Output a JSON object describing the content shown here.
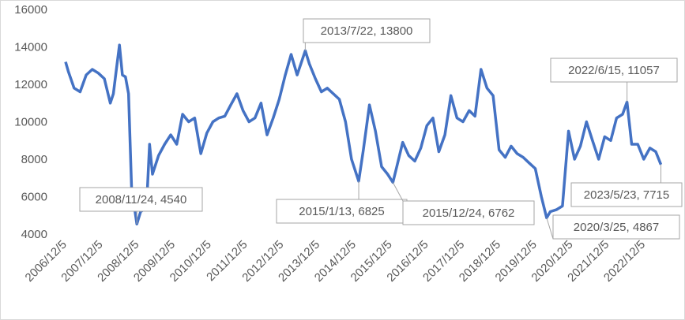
{
  "chart_data": {
    "type": "line",
    "color": "#4472c4",
    "x": [
      "2006/12/5",
      "2007/1",
      "2007/3",
      "2007/5",
      "2007/7",
      "2007/9",
      "2007/11",
      "2008/1",
      "2008/3",
      "2008/4",
      "2008/5",
      "2008/6",
      "2008/7",
      "2008/8",
      "2008/9",
      "2008/10",
      "2008/11/24",
      "2009/1",
      "2009/3",
      "2009/4",
      "2009/5",
      "2009/7",
      "2009/9",
      "2009/11",
      "2010/1",
      "2010/3",
      "2010/5",
      "2010/7",
      "2010/9",
      "2010/11",
      "2011/1",
      "2011/3",
      "2011/5",
      "2011/7",
      "2011/9",
      "2011/11",
      "2012/1",
      "2012/3",
      "2012/5",
      "2012/7",
      "2012/9",
      "2012/11",
      "2013/1",
      "2013/3",
      "2013/5",
      "2013/7/22",
      "2013/9",
      "2013/11",
      "2014/1",
      "2014/3",
      "2014/5",
      "2014/7",
      "2014/9",
      "2014/11",
      "2015/1/13",
      "2015/3",
      "2015/5",
      "2015/7",
      "2015/9",
      "2015/11",
      "2015/12/24",
      "2016/2",
      "2016/4",
      "2016/6",
      "2016/8",
      "2016/10",
      "2016/12",
      "2017/2",
      "2017/4",
      "2017/6",
      "2017/8",
      "2017/10",
      "2017/12",
      "2018/2",
      "2018/4",
      "2018/6",
      "2018/8",
      "2018/10",
      "2018/12",
      "2019/2",
      "2019/4",
      "2019/6",
      "2019/8",
      "2019/10",
      "2019/12",
      "2020/2",
      "2020/3/25",
      "2020/5",
      "2020/7",
      "2020/9",
      "2020/11",
      "2021/1",
      "2021/3",
      "2021/5",
      "2021/7",
      "2021/9",
      "2021/11",
      "2022/1",
      "2022/3",
      "2022/5",
      "2022/6/15",
      "2022/8",
      "2022/10",
      "2022/12",
      "2023/2",
      "2023/4",
      "2023/5/23"
    ],
    "values": [
      13200,
      12700,
      11800,
      11600,
      12500,
      12800,
      12600,
      12300,
      11000,
      11500,
      12800,
      14100,
      12500,
      12400,
      11500,
      6500,
      4540,
      5200,
      5400,
      8800,
      7200,
      8200,
      8800,
      9300,
      8800,
      10400,
      10000,
      10200,
      8300,
      9400,
      10000,
      10200,
      10300,
      10900,
      11500,
      10600,
      10000,
      10200,
      11000,
      9300,
      10200,
      11200,
      12500,
      13600,
      12500,
      13800,
      13100,
      12300,
      11600,
      11800,
      11500,
      11200,
      10000,
      8000,
      6825,
      8500,
      10900,
      9500,
      7600,
      7200,
      6762,
      7600,
      8900,
      8200,
      7900,
      8600,
      9800,
      10200,
      8400,
      9300,
      11400,
      10200,
      10000,
      10600,
      10300,
      12800,
      11800,
      11400,
      8500,
      8100,
      8700,
      8300,
      8100,
      7800,
      7500,
      6000,
      4867,
      5200,
      5300,
      5500,
      9500,
      8000,
      8700,
      10000,
      9000,
      8000,
      9200,
      9000,
      10200,
      10400,
      11057,
      8800,
      8800,
      8000,
      8600,
      8400,
      7715
    ],
    "xlim": [
      "2006/12/5",
      "2023/6/20"
    ],
    "xticks": [
      "2006/12/5",
      "2007/12/5",
      "2008/12/5",
      "2009/12/5",
      "2010/12/5",
      "2011/12/5",
      "2012/12/5",
      "2013/12/5",
      "2014/12/5",
      "2015/12/5",
      "2016/12/5",
      "2017/12/5",
      "2018/12/5",
      "2019/12/5",
      "2020/12/5",
      "2021/12/5",
      "2022/12/5"
    ],
    "ylim": [
      4000,
      16000
    ],
    "yticks": [
      4000,
      6000,
      8000,
      10000,
      12000,
      14000,
      16000
    ],
    "annotations": [
      "2008/11/24, 4540",
      "2013/7/22, 13800",
      "2015/1/13, 6825",
      "2015/12/24, 6762",
      "2020/3/25, 4867",
      "2022/6/15, 11057",
      "2023/5/23, 7715"
    ]
  }
}
